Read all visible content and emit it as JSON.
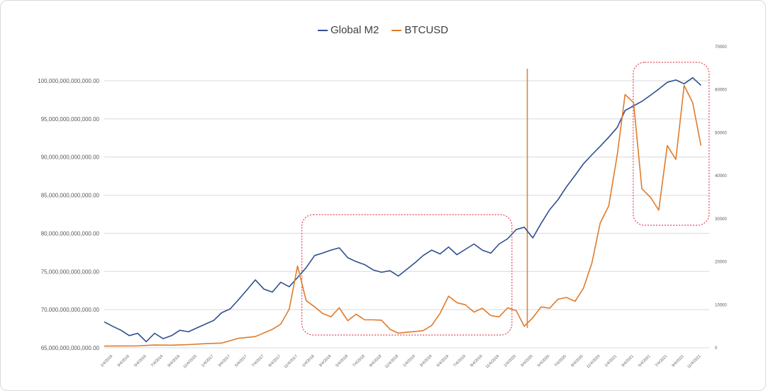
{
  "chart_data": {
    "type": "line",
    "title": "",
    "legend_position": "top-center",
    "grid": "horizontal",
    "series": [
      {
        "name": "Global M2",
        "axis": "left",
        "color": "#2e4f8f",
        "points": [
          [
            "2016-01-01",
            68.4
          ],
          [
            "2016-02-01",
            67.8
          ],
          [
            "2016-03-01",
            67.3
          ],
          [
            "2016-04-01",
            66.6
          ],
          [
            "2016-05-01",
            66.9
          ],
          [
            "2016-06-01",
            65.8
          ],
          [
            "2016-07-01",
            66.9
          ],
          [
            "2016-08-01",
            66.2
          ],
          [
            "2016-09-01",
            66.6
          ],
          [
            "2016-10-01",
            67.3
          ],
          [
            "2016-11-01",
            67.1
          ],
          [
            "2016-12-01",
            67.6
          ],
          [
            "2017-01-01",
            68.1
          ],
          [
            "2017-02-01",
            68.6
          ],
          [
            "2017-03-01",
            69.6
          ],
          [
            "2017-04-01",
            70.1
          ],
          [
            "2017-05-01",
            71.3
          ],
          [
            "2017-06-01",
            72.6
          ],
          [
            "2017-07-01",
            73.9
          ],
          [
            "2017-08-01",
            72.7
          ],
          [
            "2017-09-01",
            72.3
          ],
          [
            "2017-10-01",
            73.6
          ],
          [
            "2017-11-01",
            73.0
          ],
          [
            "2017-12-01",
            74.2
          ],
          [
            "2018-01-01",
            75.5
          ],
          [
            "2018-02-01",
            77.1
          ],
          [
            "2018-03-01",
            77.4
          ],
          [
            "2018-04-01",
            77.8
          ],
          [
            "2018-05-01",
            78.1
          ],
          [
            "2018-06-01",
            76.8
          ],
          [
            "2018-07-01",
            76.3
          ],
          [
            "2018-08-01",
            75.9
          ],
          [
            "2018-09-01",
            75.2
          ],
          [
            "2018-10-01",
            74.9
          ],
          [
            "2018-11-01",
            75.1
          ],
          [
            "2018-12-01",
            74.4
          ],
          [
            "2019-01-01",
            75.3
          ],
          [
            "2019-02-01",
            76.2
          ],
          [
            "2019-03-01",
            77.1
          ],
          [
            "2019-04-01",
            77.8
          ],
          [
            "2019-05-01",
            77.3
          ],
          [
            "2019-06-01",
            78.2
          ],
          [
            "2019-07-01",
            77.2
          ],
          [
            "2019-08-01",
            77.9
          ],
          [
            "2019-09-01",
            78.6
          ],
          [
            "2019-10-01",
            77.8
          ],
          [
            "2019-11-01",
            77.4
          ],
          [
            "2019-12-01",
            78.6
          ],
          [
            "2020-01-01",
            79.3
          ],
          [
            "2020-02-01",
            80.5
          ],
          [
            "2020-03-01",
            80.8
          ],
          [
            "2020-04-01",
            79.4
          ],
          [
            "2020-05-01",
            81.3
          ],
          [
            "2020-06-01",
            83.1
          ],
          [
            "2020-07-01",
            84.4
          ],
          [
            "2020-08-01",
            86.1
          ],
          [
            "2020-09-01",
            87.6
          ],
          [
            "2020-10-01",
            89.1
          ],
          [
            "2020-11-01",
            90.3
          ],
          [
            "2020-12-01",
            91.4
          ],
          [
            "2021-01-01",
            92.6
          ],
          [
            "2021-02-01",
            93.9
          ],
          [
            "2021-03-01",
            96.1
          ],
          [
            "2021-04-01",
            96.7
          ],
          [
            "2021-05-01",
            97.3
          ],
          [
            "2021-06-01",
            98.1
          ],
          [
            "2021-07-01",
            98.9
          ],
          [
            "2021-08-01",
            99.8
          ],
          [
            "2021-09-01",
            100.1
          ],
          [
            "2021-10-01",
            99.6
          ],
          [
            "2021-11-01",
            100.4
          ],
          [
            "2021-12-01",
            99.4
          ]
        ]
      },
      {
        "name": "BTCUSD",
        "axis": "right",
        "color": "#e07b2a",
        "points": [
          [
            "2016-01-01",
            400
          ],
          [
            "2016-03-01",
            420
          ],
          [
            "2016-05-01",
            450
          ],
          [
            "2016-07-01",
            650
          ],
          [
            "2016-09-01",
            610
          ],
          [
            "2016-11-01",
            740
          ],
          [
            "2017-01-01",
            950
          ],
          [
            "2017-03-01",
            1100
          ],
          [
            "2017-05-01",
            2200
          ],
          [
            "2017-07-01",
            2600
          ],
          [
            "2017-09-01",
            4300
          ],
          [
            "2017-10-01",
            5500
          ],
          [
            "2017-11-01",
            9000
          ],
          [
            "2017-12-01",
            19000
          ],
          [
            "2018-01-01",
            11000
          ],
          [
            "2018-02-01",
            9500
          ],
          [
            "2018-03-01",
            8000
          ],
          [
            "2018-04-01",
            7200
          ],
          [
            "2018-05-01",
            9300
          ],
          [
            "2018-06-01",
            6300
          ],
          [
            "2018-07-01",
            7800
          ],
          [
            "2018-08-01",
            6500
          ],
          [
            "2018-09-01",
            6500
          ],
          [
            "2018-10-01",
            6400
          ],
          [
            "2018-11-01",
            4300
          ],
          [
            "2018-12-01",
            3400
          ],
          [
            "2019-01-01",
            3600
          ],
          [
            "2019-02-01",
            3800
          ],
          [
            "2019-03-01",
            4000
          ],
          [
            "2019-04-01",
            5200
          ],
          [
            "2019-05-01",
            8000
          ],
          [
            "2019-06-01",
            12000
          ],
          [
            "2019-07-01",
            10500
          ],
          [
            "2019-08-01",
            10000
          ],
          [
            "2019-09-01",
            8300
          ],
          [
            "2019-10-01",
            9200
          ],
          [
            "2019-11-01",
            7500
          ],
          [
            "2019-12-01",
            7200
          ],
          [
            "2020-01-01",
            9300
          ],
          [
            "2020-02-01",
            8600
          ],
          [
            "2020-03-01",
            5000
          ],
          [
            "2020-04-01",
            7000
          ],
          [
            "2020-05-01",
            9500
          ],
          [
            "2020-06-01",
            9200
          ],
          [
            "2020-07-01",
            11300
          ],
          [
            "2020-08-01",
            11700
          ],
          [
            "2020-09-01",
            10800
          ],
          [
            "2020-10-01",
            13800
          ],
          [
            "2020-11-01",
            19700
          ],
          [
            "2020-12-01",
            29000
          ],
          [
            "2021-01-01",
            33000
          ],
          [
            "2021-02-01",
            45000
          ],
          [
            "2021-03-01",
            58900
          ],
          [
            "2021-04-01",
            57000
          ],
          [
            "2021-05-01",
            37000
          ],
          [
            "2021-06-01",
            35000
          ],
          [
            "2021-07-01",
            32000
          ],
          [
            "2021-08-01",
            47000
          ],
          [
            "2021-09-01",
            43800
          ],
          [
            "2021-10-01",
            61000
          ],
          [
            "2021-11-01",
            57000
          ],
          [
            "2021-12-01",
            47000
          ]
        ]
      }
    ],
    "y_axis_left": {
      "min": 65000000000000,
      "max": 100000000000000,
      "unit_values": [
        65,
        70,
        75,
        80,
        85,
        90,
        95,
        100
      ],
      "tick_labels": [
        "65,000,000,000,000.00",
        "70,000,000,000,000.00",
        "75,000,000,000,000.00",
        "80,000,000,000,000.00",
        "85,000,000,000,000.00",
        "90,000,000,000,000.00",
        "95,000,000,000,000.00",
        "100,000,000,000,000.00"
      ]
    },
    "y_axis_right": {
      "min": 0,
      "max": 70000,
      "ticks": [
        0,
        10000,
        20000,
        30000,
        40000,
        50000,
        60000,
        70000
      ],
      "tick_labels": [
        "0",
        "10000",
        "20000",
        "30000",
        "40000",
        "50000",
        "60000",
        "70000"
      ]
    },
    "x_axis": {
      "range": [
        "2016-01-01",
        "2021-12-31"
      ],
      "tick_labels": [
        "1/4/2016",
        "3/4/2016",
        "5/4/2016",
        "7/4/2016",
        "9/4/2016",
        "11/4/2016",
        "1/4/2017",
        "3/4/2017",
        "5/4/2017",
        "7/4/2017",
        "9/4/2017",
        "11/4/2017",
        "1/4/2018",
        "3/4/2018",
        "5/4/2018",
        "7/4/2018",
        "9/4/2018",
        "11/4/2018",
        "1/4/2019",
        "3/4/2019",
        "5/4/2019",
        "7/4/2019",
        "9/4/2019",
        "11/4/2019",
        "1/4/2020",
        "3/4/2020",
        "5/4/2020",
        "7/4/2020",
        "9/4/2020",
        "11/4/2020",
        "1/4/2021",
        "3/4/2021",
        "5/4/2021",
        "7/4/2021",
        "9/4/2021",
        "11/4/2021"
      ]
    },
    "annotations": [
      {
        "type": "dashed-rounded-box",
        "color": "#e0455a",
        "from": "2018-01-01",
        "to": "2020-01-01"
      },
      {
        "type": "dashed-rounded-box",
        "color": "#e0455a",
        "from": "2021-04-15",
        "to": "2021-12-15"
      },
      {
        "type": "vertical-line",
        "color": "#d9883f",
        "at": "2020-03-12"
      }
    ]
  }
}
